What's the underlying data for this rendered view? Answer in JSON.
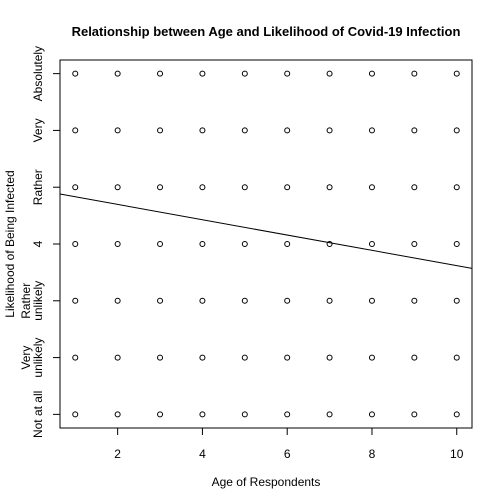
{
  "chart_data": {
    "type": "scatter",
    "title": "Relationship between Age and Likelihood of Covid-19 Infection",
    "x_label": "Age of Respondents",
    "y_label": "Likelihood of Being Infected",
    "xlim": [
      0.64,
      10.36
    ],
    "ylim": [
      0.76,
      7.24
    ],
    "xticks": [
      2,
      4,
      6,
      8,
      10
    ],
    "yticks": [
      {
        "value": 1,
        "label": "Not at all"
      },
      {
        "value": 2,
        "label": "Very\nunlikely"
      },
      {
        "value": 3,
        "label": "Rather\nunlikely"
      },
      4,
      {
        "value": 5,
        "label": "Rather"
      },
      {
        "value": 6,
        "label": "Very"
      },
      {
        "value": 7,
        "label": "Absolutely"
      }
    ],
    "series": [
      {
        "color": "#000000",
        "x": [
          1,
          2,
          3,
          4,
          5,
          6,
          7,
          8,
          9,
          10,
          1,
          2,
          3,
          4,
          5,
          6,
          7,
          8,
          9,
          10,
          1,
          2,
          3,
          4,
          5,
          6,
          7,
          8,
          9,
          10,
          1,
          2,
          3,
          4,
          5,
          6,
          7,
          8,
          9,
          10,
          1,
          2,
          3,
          4,
          5,
          6,
          7,
          8,
          9,
          10,
          1,
          2,
          3,
          4,
          5,
          6,
          7,
          8,
          9,
          10,
          1,
          2,
          3,
          4,
          5,
          6,
          7,
          8,
          9,
          10
        ],
        "values": [
          1,
          1,
          1,
          1,
          1,
          1,
          1,
          1,
          1,
          1,
          2,
          2,
          2,
          2,
          2,
          2,
          2,
          2,
          2,
          2,
          3,
          3,
          3,
          3,
          3,
          3,
          3,
          3,
          3,
          3,
          4,
          4,
          4,
          4,
          4,
          4,
          4,
          4,
          4,
          4,
          5,
          5,
          5,
          5,
          5,
          5,
          5,
          5,
          5,
          5,
          6,
          6,
          6,
          6,
          6,
          6,
          6,
          6,
          6,
          6,
          7,
          7,
          7,
          7,
          7,
          7,
          7,
          7,
          7,
          7
        ]
      }
    ],
    "fit_line": {
      "color": "#000000",
      "x": [
        0.64,
        10.36
      ],
      "values": [
        4.88,
        3.57
      ]
    }
  }
}
